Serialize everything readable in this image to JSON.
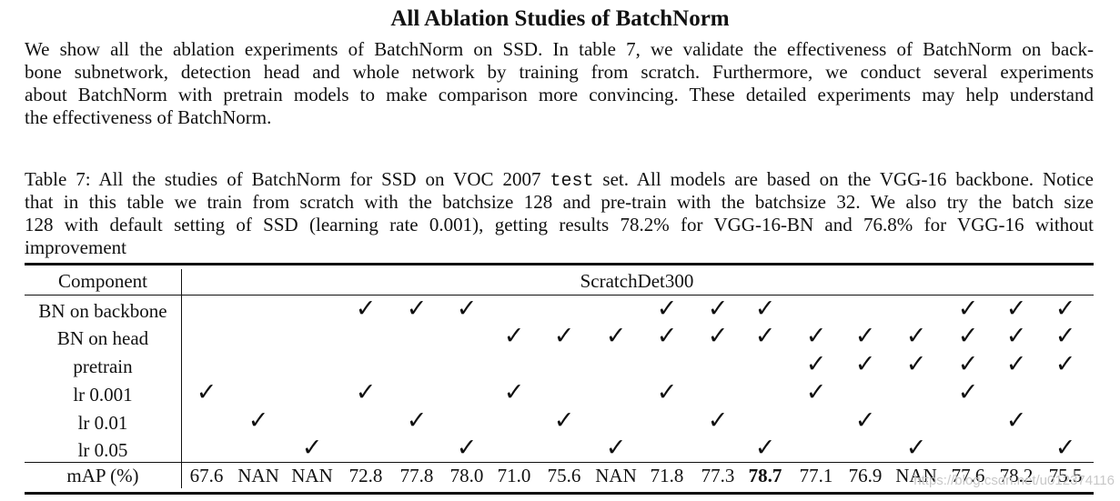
{
  "section_title": "All Ablation Studies of BatchNorm",
  "paragraph_lines": [
    "We show all the ablation experiments of BatchNorm on SSD. In table 7, we validate the effectiveness of BatchNorm on back-",
    "bone subnetwork, detection head and whole network by training from scratch. Furthermore, we conduct several experiments",
    "about BatchNorm with pretrain models to make comparison more convincing. These detailed experiments may help understand",
    "the effectiveness of BatchNorm."
  ],
  "caption": {
    "line1_a": "Table 7: All the studies of BatchNorm for SSD on VOC 2007 ",
    "line1_mono": "test",
    "line1_b": " set. All models are based on the VGG-16 backbone. Notice",
    "line2": "that in this table we train from scratch with the batchsize 128 and pre-train with the batchsize 32. We also try the batch size",
    "line3": "128 with default setting of SSD (learning rate 0.001), getting results 78.2% for VGG-16-BN and 76.8% for VGG-16 without",
    "line4": "improvement"
  },
  "table": {
    "header_component": "Component",
    "header_method": "ScratchDet300",
    "check_symbol": "✓",
    "rows": [
      {
        "label": "BN on backbone",
        "checks": [
          0,
          0,
          0,
          1,
          1,
          1,
          0,
          0,
          0,
          1,
          1,
          1,
          0,
          0,
          0,
          1,
          1,
          1
        ]
      },
      {
        "label": "BN on head",
        "checks": [
          0,
          0,
          0,
          0,
          0,
          0,
          1,
          1,
          1,
          1,
          1,
          1,
          1,
          1,
          1,
          1,
          1,
          1
        ]
      },
      {
        "label": "pretrain",
        "checks": [
          0,
          0,
          0,
          0,
          0,
          0,
          0,
          0,
          0,
          0,
          0,
          0,
          1,
          1,
          1,
          1,
          1,
          1
        ]
      },
      {
        "label": "lr 0.001",
        "checks": [
          1,
          0,
          0,
          1,
          0,
          0,
          1,
          0,
          0,
          1,
          0,
          0,
          1,
          0,
          0,
          1,
          0,
          0
        ]
      },
      {
        "label": "lr 0.01",
        "checks": [
          0,
          1,
          0,
          0,
          1,
          0,
          0,
          1,
          0,
          0,
          1,
          0,
          0,
          1,
          0,
          0,
          1,
          0
        ]
      },
      {
        "label": "lr 0.05",
        "checks": [
          0,
          0,
          1,
          0,
          0,
          1,
          0,
          0,
          1,
          0,
          0,
          1,
          0,
          0,
          1,
          0,
          0,
          1
        ]
      }
    ],
    "map_label": "mAP (%)",
    "map_values": [
      "67.6",
      "NAN",
      "NAN",
      "72.8",
      "77.8",
      "78.0",
      "71.0",
      "75.6",
      "NAN",
      "71.8",
      "77.3",
      "78.7",
      "77.1",
      "76.9",
      "NAN",
      "77.6",
      "78.2",
      "75.5"
    ],
    "map_bold_index": 11
  },
  "watermark": "https://blog.csdn.net/u012374116"
}
